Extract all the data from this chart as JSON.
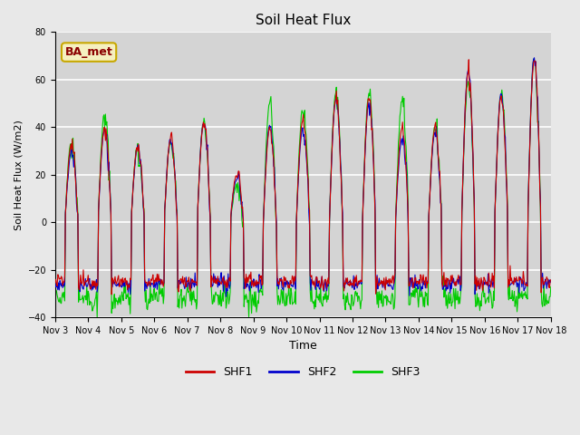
{
  "title": "Soil Heat Flux",
  "ylabel": "Soil Heat Flux (W/m2)",
  "xlabel": "Time",
  "ylim": [
    -40,
    80
  ],
  "yticks": [
    -40,
    -20,
    0,
    20,
    40,
    60,
    80
  ],
  "colors": {
    "SHF1": "#cc0000",
    "SHF2": "#0000cc",
    "SHF3": "#00cc00"
  },
  "legend_label": "BA_met",
  "legend_label_color": "#8b0000",
  "legend_box_facecolor": "#f5f0c0",
  "legend_box_edgecolor": "#c8a800",
  "background_color": "#e8e8e8",
  "plot_bg_color": "#d4d4d4",
  "grid_color": "#ffffff",
  "xtick_labels": [
    "Nov 3",
    "Nov 4",
    "Nov 5",
    "Nov 6",
    "Nov 7",
    "Nov 8",
    "Nov 9",
    "Nov 10",
    "Nov 11",
    "Nov 12",
    "Nov 13",
    "Nov 14",
    "Nov 15",
    "Nov 16",
    "Nov 17",
    "Nov 18"
  ],
  "linewidth": 0.8,
  "day_peaks_shf1": [
    33,
    40,
    32,
    35,
    42,
    20,
    40,
    43,
    52,
    52,
    40,
    40,
    63,
    53,
    68
  ],
  "day_peaks_shf2": [
    30,
    39,
    31,
    35,
    42,
    18,
    41,
    40,
    52,
    51,
    35,
    38,
    64,
    54,
    70
  ],
  "day_peaks_shf3": [
    34,
    46,
    32,
    34,
    42,
    15,
    50,
    48,
    55,
    54,
    51,
    40,
    59,
    54,
    69
  ]
}
